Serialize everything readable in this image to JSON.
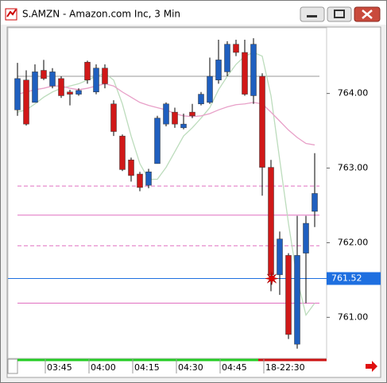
{
  "window": {
    "title": "S.AMZN - Amazon.com Inc, 3 Min"
  },
  "chart_data": {
    "type": "candlestick",
    "open": [
      763.78,
      764.18,
      763.88,
      764.31,
      764.1,
      764.2,
      764.02,
      763.99,
      764.42,
      764.02,
      764.34,
      763.86,
      763.43,
      763.11,
      762.92,
      762.77,
      763.06,
      763.59,
      763.75,
      763.54,
      763.75,
      763.86,
      763.88,
      764.18,
      764.29,
      764.66,
      764.55,
      763.97,
      764.23,
      763.01,
      761.57,
      761.83,
      760.64,
      761.86,
      762.42
    ],
    "high": [
      764.41,
      764.31,
      764.39,
      764.45,
      764.34,
      764.23,
      764.05,
      764.07,
      764.44,
      764.39,
      764.39,
      763.91,
      763.45,
      763.14,
      762.95,
      762.99,
      763.7,
      763.88,
      763.81,
      763.73,
      763.86,
      764.02,
      764.48,
      764.72,
      764.7,
      764.72,
      764.72,
      764.74,
      764.27,
      763.11,
      762.15,
      761.86,
      762.36,
      762.36,
      763.2
    ],
    "low": [
      763.7,
      763.57,
      763.88,
      764.18,
      764.07,
      763.94,
      763.84,
      763.97,
      764.13,
      763.99,
      764.07,
      763.43,
      762.96,
      762.82,
      762.69,
      762.73,
      763.06,
      763.56,
      763.54,
      763.52,
      763.67,
      763.84,
      763.86,
      764.13,
      764.23,
      764.5,
      763.97,
      763.86,
      762.63,
      761.35,
      761.3,
      760.71,
      760.58,
      761.19,
      762.21
    ],
    "close": [
      764.2,
      763.59,
      764.29,
      764.2,
      764.29,
      763.97,
      763.99,
      764.04,
      764.18,
      764.34,
      764.13,
      763.49,
      762.98,
      762.9,
      762.74,
      762.95,
      763.67,
      763.86,
      763.59,
      763.59,
      763.7,
      763.99,
      764.23,
      764.45,
      764.66,
      764.55,
      763.99,
      764.66,
      763.01,
      761.57,
      762.05,
      760.77,
      761.83,
      762.26,
      762.66
    ],
    "up_color": "#1f5fbf",
    "down_color": "#d01818",
    "averages": [
      {
        "color": "#bcdcbc",
        "values": [
          763.75,
          763.78,
          763.86,
          763.95,
          764.02,
          764.07,
          764.1,
          764.13,
          764.18,
          764.23,
          764.27,
          764.18,
          763.86,
          763.43,
          763.06,
          762.85,
          762.85,
          763.01,
          763.22,
          763.43,
          763.54,
          763.67,
          763.81,
          764.05,
          764.23,
          764.39,
          764.5,
          764.55,
          764.5,
          763.97,
          763.11,
          762.26,
          761.51,
          761.03,
          761.19
        ]
      },
      {
        "color": "#e8a0c8",
        "values": [
          763.99,
          764.02,
          764.05,
          764.07,
          764.1,
          764.1,
          764.07,
          764.05,
          764.07,
          764.1,
          764.13,
          764.1,
          764.02,
          763.95,
          763.88,
          763.84,
          763.81,
          763.78,
          763.73,
          763.7,
          763.69,
          763.7,
          763.73,
          763.78,
          763.82,
          763.85,
          763.86,
          763.88,
          763.86,
          763.75,
          763.63,
          763.51,
          763.41,
          763.33,
          763.31
        ]
      }
    ],
    "levels": [
      {
        "value": 764.23,
        "color": "#999999",
        "dash": false
      },
      {
        "value": 762.76,
        "color": "#e070c0",
        "dash": true
      },
      {
        "value": 762.37,
        "color": "#e070c0",
        "dash": false
      },
      {
        "value": 761.96,
        "color": "#e070c0",
        "dash": true
      },
      {
        "value": 761.19,
        "color": "#e070c0",
        "dash": false
      }
    ],
    "last_price": 761.52,
    "last_color": "#1e6fe0",
    "ylim": [
      760.45,
      764.88
    ],
    "yticks": [
      {
        "value": 761,
        "label": "761.00"
      },
      {
        "value": 762,
        "label": "762.00"
      },
      {
        "value": 763,
        "label": "763.00"
      },
      {
        "value": 764,
        "label": "764.00"
      }
    ],
    "xticks": [
      {
        "value": 3,
        "label": "03:45"
      },
      {
        "value": 8,
        "label": "04:00"
      },
      {
        "value": 13,
        "label": "04:15"
      },
      {
        "value": 18,
        "label": "04:30"
      },
      {
        "value": 23,
        "label": "04:45"
      },
      {
        "value": 28,
        "label": "18-22:30"
      }
    ]
  }
}
